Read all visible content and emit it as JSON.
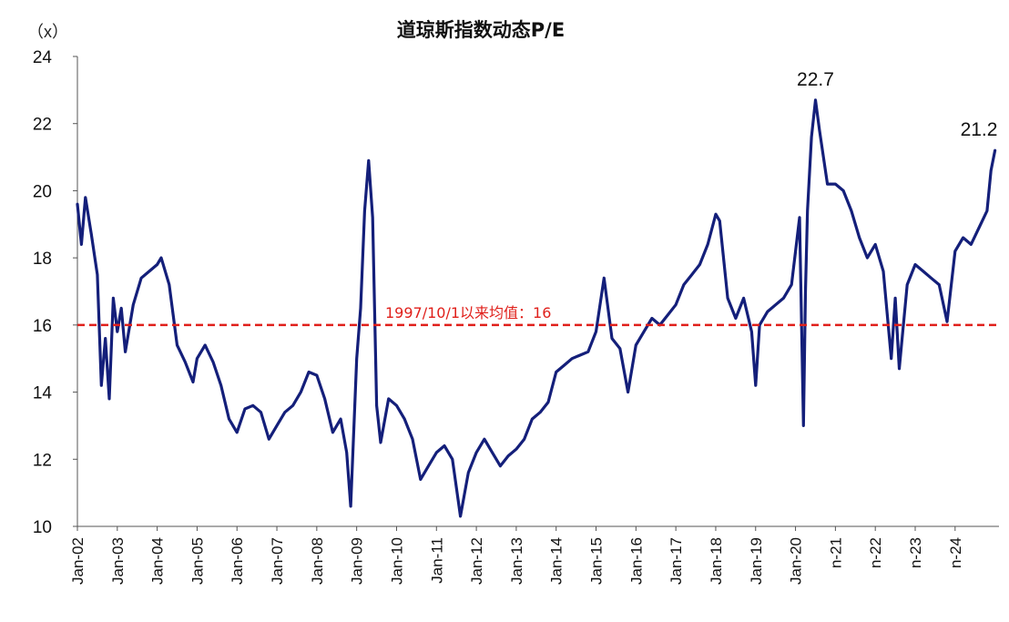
{
  "chart_data": {
    "type": "line",
    "title": "道琼斯指数动态P/E",
    "unit_label": "（x）",
    "ylim": [
      10,
      24
    ],
    "yticks": [
      "10",
      "12",
      "14",
      "16",
      "18",
      "20",
      "22",
      "24"
    ],
    "xticks": [
      "Jan-02",
      "Jan-03",
      "Jan-04",
      "Jan-05",
      "Jan-06",
      "Jan-07",
      "Jan-08",
      "Jan-09",
      "Jan-10",
      "Jan-11",
      "Jan-12",
      "Jan-13",
      "Jan-14",
      "Jan-15",
      "Jan-16",
      "Jan-17",
      "Jan-18",
      "Jan-19",
      "Jan-20",
      "n-21",
      "n-22",
      "n-23",
      "n-24"
    ],
    "grid": false,
    "line_color": "#141f7a",
    "reference_color": "#e0201b",
    "series": [
      {
        "x": [
          2002.0,
          2002.1,
          2002.2,
          2002.35,
          2002.5,
          2002.6,
          2002.7,
          2002.8,
          2002.9,
          2003.0,
          2003.1,
          2003.2,
          2003.4,
          2003.6,
          2003.8,
          2004.0,
          2004.1,
          2004.3,
          2004.5,
          2004.7,
          2004.9,
          2005.0,
          2005.2,
          2005.4,
          2005.6,
          2005.8,
          2006.0,
          2006.2,
          2006.4,
          2006.6,
          2006.8,
          2007.0,
          2007.2,
          2007.4,
          2007.6,
          2007.8,
          2008.0,
          2008.2,
          2008.4,
          2008.6,
          2008.75,
          2008.85,
          2009.0,
          2009.1,
          2009.2,
          2009.3,
          2009.4,
          2009.5,
          2009.6,
          2009.8,
          2010.0,
          2010.2,
          2010.4,
          2010.6,
          2010.8,
          2011.0,
          2011.2,
          2011.4,
          2011.6,
          2011.8,
          2012.0,
          2012.2,
          2012.4,
          2012.6,
          2012.8,
          2013.0,
          2013.2,
          2013.4,
          2013.6,
          2013.8,
          2014.0,
          2014.2,
          2014.4,
          2014.6,
          2014.8,
          2015.0,
          2015.2,
          2015.4,
          2015.6,
          2015.8,
          2016.0,
          2016.2,
          2016.4,
          2016.6,
          2016.8,
          2017.0,
          2017.2,
          2017.4,
          2017.6,
          2017.8,
          2018.0,
          2018.1,
          2018.3,
          2018.5,
          2018.7,
          2018.9,
          2019.0,
          2019.1,
          2019.3,
          2019.5,
          2019.7,
          2019.9,
          2020.0,
          2020.1,
          2020.2,
          2020.25,
          2020.3,
          2020.4,
          2020.5,
          2020.6,
          2020.8,
          2021.0,
          2021.2,
          2021.4,
          2021.6,
          2021.8,
          2022.0,
          2022.2,
          2022.4,
          2022.5,
          2022.6,
          2022.8,
          2023.0,
          2023.2,
          2023.4,
          2023.6,
          2023.8,
          2024.0,
          2024.2,
          2024.4,
          2024.6,
          2024.8,
          2024.9,
          2025.0
        ],
        "y": [
          19.6,
          18.4,
          19.8,
          18.7,
          17.5,
          14.2,
          15.6,
          13.8,
          16.8,
          15.8,
          16.5,
          15.2,
          16.6,
          17.4,
          17.6,
          17.8,
          18.0,
          17.2,
          15.4,
          14.9,
          14.3,
          15.0,
          15.4,
          14.9,
          14.2,
          13.2,
          12.8,
          13.5,
          13.6,
          13.4,
          12.6,
          13.0,
          13.4,
          13.6,
          14.0,
          14.6,
          14.5,
          13.8,
          12.8,
          13.2,
          12.2,
          10.6,
          15.0,
          16.5,
          19.4,
          20.9,
          19.2,
          13.6,
          12.5,
          13.8,
          13.6,
          13.2,
          12.6,
          11.4,
          11.8,
          12.2,
          12.4,
          12.0,
          10.3,
          11.6,
          12.2,
          12.6,
          12.2,
          11.8,
          12.1,
          12.3,
          12.6,
          13.2,
          13.4,
          13.7,
          14.6,
          14.8,
          15.0,
          15.1,
          15.2,
          15.8,
          17.4,
          15.6,
          15.3,
          14.0,
          15.4,
          15.8,
          16.2,
          16.0,
          16.3,
          16.6,
          17.2,
          17.5,
          17.8,
          18.4,
          19.3,
          19.1,
          16.8,
          16.2,
          16.8,
          15.8,
          14.2,
          16.0,
          16.4,
          16.6,
          16.8,
          17.2,
          18.2,
          19.2,
          13.0,
          17.0,
          19.4,
          21.6,
          22.7,
          21.8,
          20.2,
          20.2,
          20.0,
          19.4,
          18.6,
          18.0,
          18.4,
          17.6,
          15.0,
          16.8,
          14.7,
          17.2,
          17.8,
          17.6,
          17.4,
          17.2,
          16.1,
          18.2,
          18.6,
          18.4,
          18.9,
          19.4,
          20.6,
          21.2
        ]
      }
    ],
    "reference_line": {
      "value": 16,
      "label": "1997/10/1以来均值：16"
    },
    "annotations": [
      {
        "text": "22.7",
        "x": 2020.5,
        "y": 22.7
      },
      {
        "text": "21.2",
        "x": 2025.0,
        "y": 21.2
      }
    ]
  }
}
